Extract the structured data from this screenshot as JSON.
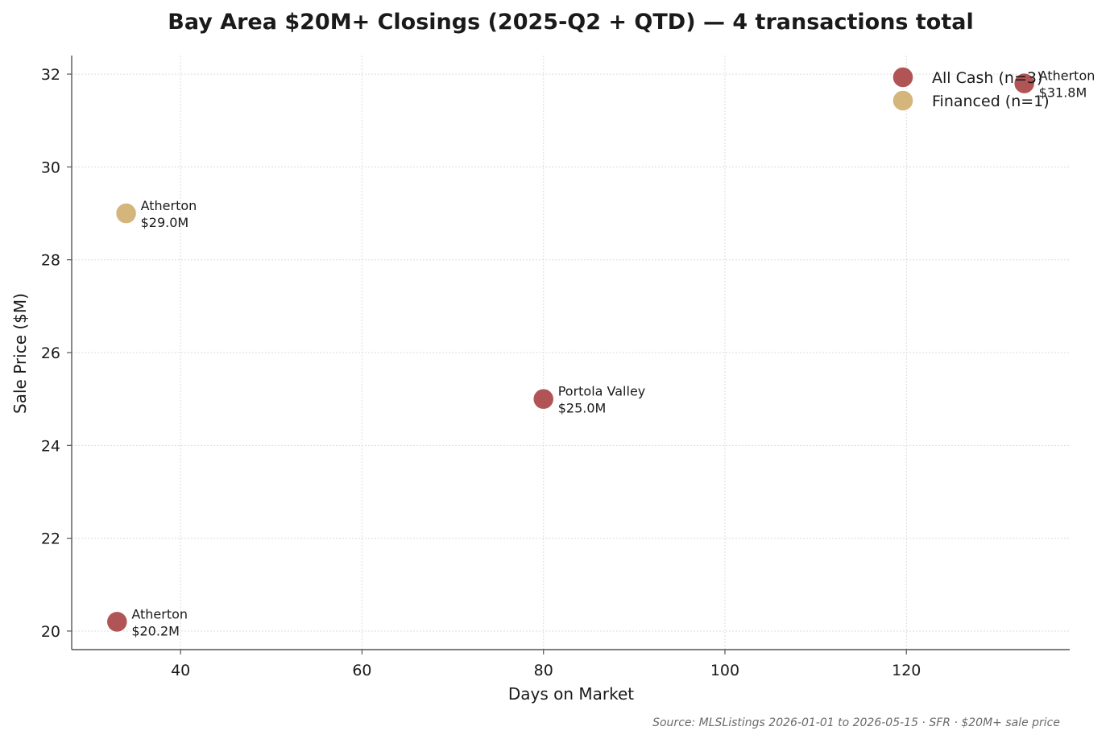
{
  "chart_data": {
    "type": "scatter",
    "title": "Bay Area $20M+ Closings (2025-Q2 + QTD) — 4 transactions total",
    "xlabel": "Days on Market",
    "ylabel": "Sale Price ($M)",
    "xlim": [
      28,
      138
    ],
    "ylim": [
      19.6,
      32.4
    ],
    "xticks": [
      40,
      60,
      80,
      100,
      120
    ],
    "yticks": [
      20,
      22,
      24,
      26,
      28,
      30,
      32
    ],
    "grid": true,
    "legend_position": "top-right",
    "series": [
      {
        "name": "All Cash (n=3)",
        "color": "#b05455",
        "points": [
          {
            "x": 33,
            "y": 20.2,
            "label_line1": "Atherton",
            "label_line2": "$20.2M"
          },
          {
            "x": 80,
            "y": 25.0,
            "label_line1": "Portola Valley",
            "label_line2": "$25.0M"
          },
          {
            "x": 133,
            "y": 31.8,
            "label_line1": "Atherton",
            "label_line2": "$31.8M"
          }
        ]
      },
      {
        "name": "Financed (n=1)",
        "color": "#d4b57b",
        "points": [
          {
            "x": 34,
            "y": 29.0,
            "label_line1": "Atherton",
            "label_line2": "$29.0M"
          }
        ]
      }
    ],
    "source": "Source: MLSListings 2026-01-01 to 2026-05-15 · SFR · $20M+ sale price"
  }
}
